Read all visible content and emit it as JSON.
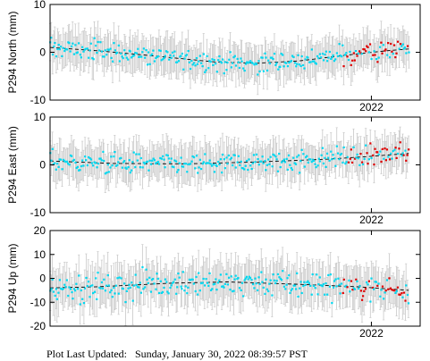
{
  "footer": {
    "label": "Plot Last Updated:",
    "value": "Sunday, January 30, 2022 08:39:57 PST"
  },
  "colors": {
    "frame": "#000000",
    "error_bar": "#c8c8c8",
    "recent_points": "#e00000",
    "points": "#00d8f0",
    "trend": "#000000"
  },
  "chart_data": [
    {
      "type": "scatter",
      "ylabel": "P294 North (mm)",
      "ylim": [
        -10,
        10
      ],
      "yticks": [
        10,
        0,
        -10
      ],
      "xtick_labels": [
        "2022"
      ],
      "xlim": [
        2020.88,
        2022.17
      ],
      "x_range": [
        2020.88,
        2022.13
      ],
      "trend": {
        "x": [
          2020.88,
          2021.05,
          2021.25,
          2021.45,
          2021.6,
          2021.75,
          2021.9,
          2022.05,
          2022.13
        ],
        "y": [
          1.0,
          0.3,
          -0.8,
          -2.0,
          -2.3,
          -1.8,
          -0.7,
          0.3,
          0.7
        ]
      },
      "recent_from": 2021.9,
      "noise": 1.5,
      "err": 3.5
    },
    {
      "type": "scatter",
      "ylabel": "P294 East (mm)",
      "ylim": [
        -10,
        10
      ],
      "yticks": [
        10,
        0,
        -10
      ],
      "xtick_labels": [
        "2022"
      ],
      "xlim": [
        2020.88,
        2022.17
      ],
      "x_range": [
        2020.88,
        2022.13
      ],
      "trend": {
        "x": [
          2020.88,
          2021.1,
          2021.35,
          2021.6,
          2021.85,
          2022.0,
          2022.13
        ],
        "y": [
          0.8,
          0.3,
          0.2,
          0.6,
          1.2,
          1.8,
          2.4
        ]
      },
      "recent_from": 2021.9,
      "noise": 1.6,
      "err": 3.5
    },
    {
      "type": "scatter",
      "ylabel": "P294 Up (mm)",
      "ylim": [
        -20,
        20
      ],
      "yticks": [
        20,
        10,
        0,
        -10,
        -20
      ],
      "xtick_labels": [
        "2022"
      ],
      "xlim": [
        2020.88,
        2022.17
      ],
      "x_range": [
        2020.88,
        2022.13
      ],
      "trend": {
        "x": [
          2020.88,
          2021.05,
          2021.3,
          2021.5,
          2021.75,
          2021.95,
          2022.13
        ],
        "y": [
          -4.0,
          -3.5,
          -2.0,
          -1.5,
          -2.5,
          -3.5,
          -5.0
        ]
      },
      "recent_from": 2021.9,
      "noise": 4.0,
      "err": 8.0
    }
  ]
}
